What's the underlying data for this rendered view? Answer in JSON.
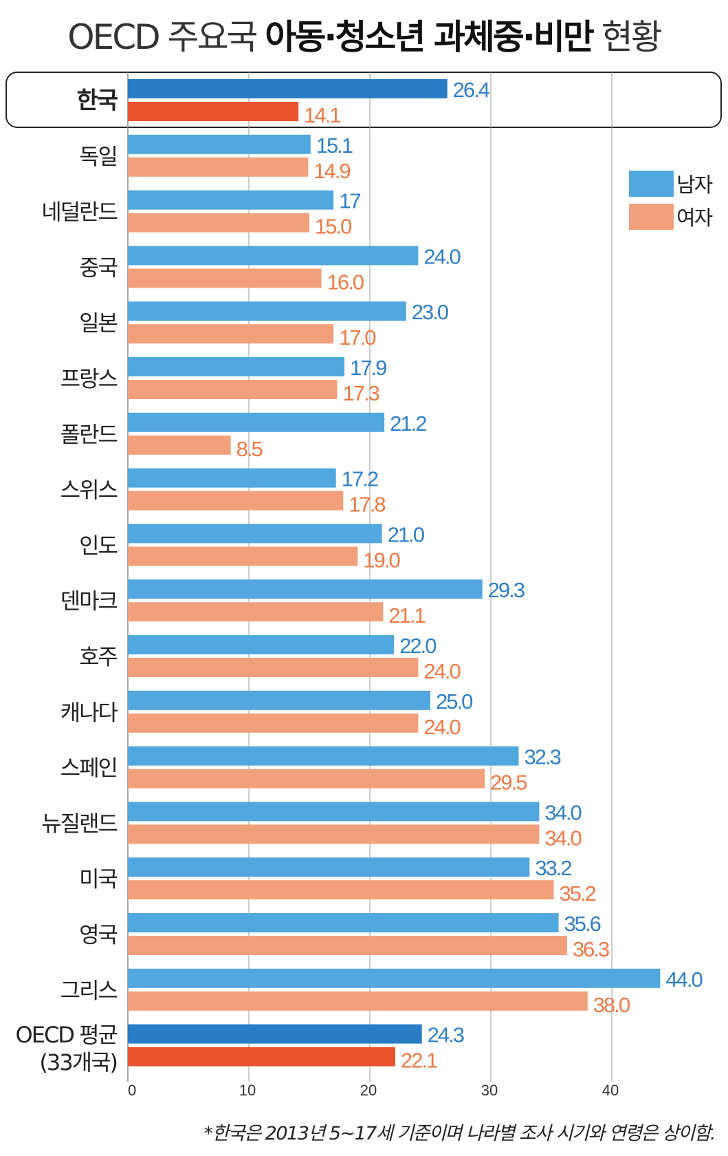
{
  "title": {
    "part1": "OECD 주요국",
    "part2": "아동·청소년 과체중·비만",
    "part3": "현황"
  },
  "footnote": "*한국은 2013년 5~17세 기준이며 나라별 조사 시기와 연령은 상이함.",
  "colors": {
    "male": "#52a7df",
    "female": "#f2a07c",
    "male_highlight": "#2a7cc4",
    "female_highlight": "#e8542f",
    "male_label": "#2f7fc6",
    "female_label": "#ec7a45"
  },
  "chart_data": {
    "type": "bar",
    "orientation": "horizontal",
    "title": "OECD 주요국 아동·청소년 과체중·비만 현황",
    "xlabel": "",
    "ylabel": "",
    "xlim": [
      0,
      48
    ],
    "xticks": [
      "0",
      "10",
      "20",
      "30",
      "40"
    ],
    "xtick_values": [
      0,
      10,
      20,
      30,
      40
    ],
    "grid": true,
    "legend": {
      "placement": "top-right",
      "entries": [
        "남자",
        "여자"
      ]
    },
    "categories": [
      "한국",
      "독일",
      "네덜란드",
      "중국",
      "일본",
      "프랑스",
      "폴란드",
      "스위스",
      "인도",
      "덴마크",
      "호주",
      "캐나다",
      "스페인",
      "뉴질랜드",
      "미국",
      "영국",
      "그리스",
      "OECD 평균\n(33개국)"
    ],
    "highlighted": [
      "한국",
      "OECD 평균\n(33개국)"
    ],
    "series": [
      {
        "name": "남자",
        "values": [
          26.4,
          15.1,
          17,
          24.0,
          23.0,
          17.9,
          21.2,
          17.2,
          21.0,
          29.3,
          22.0,
          25.0,
          32.3,
          34.0,
          33.2,
          35.6,
          44.0,
          24.3
        ],
        "labels": [
          "26.4",
          "15.1",
          "17",
          "24.0",
          "23.0",
          "17.9",
          "21.2",
          "17.2",
          "21.0",
          "29.3",
          "22.0",
          "25.0",
          "32.3",
          "34.0",
          "33.2",
          "35.6",
          "44.0",
          "24.3"
        ]
      },
      {
        "name": "여자",
        "values": [
          14.1,
          14.9,
          15.0,
          16.0,
          17.0,
          17.3,
          8.5,
          17.8,
          19.0,
          21.1,
          24.0,
          24.0,
          29.5,
          34.0,
          35.2,
          36.3,
          38.0,
          22.1
        ],
        "labels": [
          "14.1",
          "14.9",
          "15.0",
          "16.0",
          "17.0",
          "17.3",
          "8.5",
          "17.8",
          "19.0",
          "21.1",
          "24.0",
          "24.0",
          "29.5",
          "34.0",
          "35.2",
          "36.3",
          "38.0",
          "22.1"
        ]
      }
    ]
  }
}
